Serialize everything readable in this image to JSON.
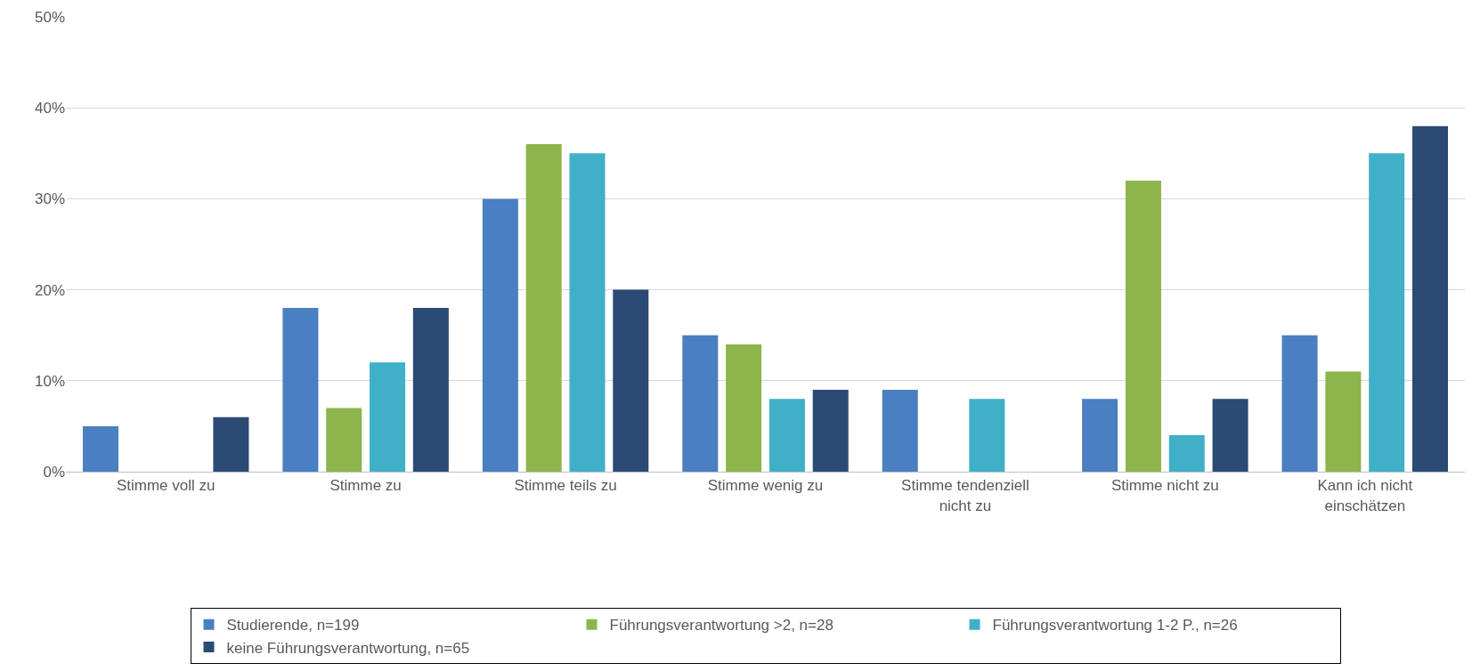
{
  "chart_data": {
    "type": "bar",
    "categories": [
      "Stimme voll zu",
      "Stimme zu",
      "Stimme teils zu",
      "Stimme wenig zu",
      "Stimme tendenziell nicht zu",
      "Stimme nicht zu",
      "Kann ich nicht einschätzen"
    ],
    "series": [
      {
        "name": "Studierende, n=199",
        "color": "#4a7fc1",
        "values": [
          5,
          18,
          30,
          15,
          9,
          8,
          15
        ]
      },
      {
        "name": "Führungsverantwortung >2, n=28",
        "color": "#8db54b",
        "values": [
          0,
          7,
          36,
          14,
          0,
          32,
          11
        ]
      },
      {
        "name": "Führungsverantwortung 1-2 P., n=26",
        "color": "#3fb0c8",
        "values": [
          0,
          12,
          35,
          8,
          8,
          4,
          35
        ]
      },
      {
        "name": "keine Führungsverantwortung, n=65",
        "color": "#2b4a74",
        "values": [
          6,
          18,
          20,
          9,
          0,
          8,
          38
        ]
      }
    ],
    "ylim": [
      0,
      50
    ],
    "yticks": [
      {
        "value": 0,
        "label": "0%"
      },
      {
        "value": 10,
        "label": "10%"
      },
      {
        "value": 20,
        "label": "20%"
      },
      {
        "value": 30,
        "label": "30%"
      },
      {
        "value": 40,
        "label": "40%"
      },
      {
        "value": 50,
        "label": "50%"
      }
    ],
    "grid": "y",
    "legend": "bottom"
  }
}
